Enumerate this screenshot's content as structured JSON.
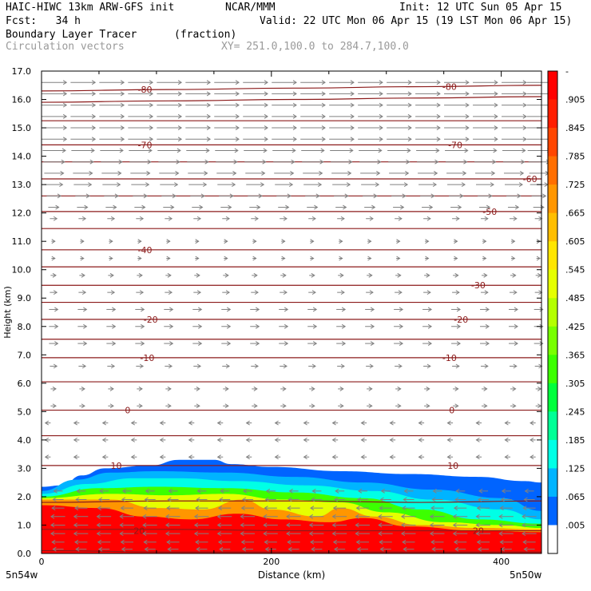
{
  "header": {
    "model": "HAIC-HIWC 13km ARW-GFS init",
    "org": "NCAR/MMM",
    "init": "Init: 12 UTC Sun 05 Apr 15",
    "fcst": "Fcst:   34 h",
    "valid": "Valid: 22 UTC Mon 06 Apr 15 (19 LST Mon 06 Apr 15)",
    "field": "Boundary Layer Tracer",
    "units": "(fraction)",
    "vectors": "Circulation vectors",
    "xy": "XY= 251.0,100.0 to 284.7,100.0"
  },
  "axis_labels": {
    "corner_left": "5n54w",
    "corner_right": "5n50w"
  },
  "colors": {
    "background": "#ffffff",
    "contour": "#8b1a1a",
    "vector": "#808080"
  },
  "chart_data": {
    "type": "heatmap",
    "xlabel": "Distance (km)",
    "ylabel": "Height (km)",
    "xlim": [
      0,
      435
    ],
    "ylim": [
      0,
      17
    ],
    "xticks": [
      0,
      200,
      400
    ],
    "yticks": [
      "0.0",
      "1.0",
      "2.0",
      "3.0",
      "4.0",
      "5.0",
      "6.0",
      "7.0",
      "8.0",
      "9.0",
      "10.0",
      "11.0",
      "12.0",
      "13.0",
      "14.0",
      "15.0",
      "16.0",
      "17.0"
    ],
    "colorbar": {
      "labels": [
        "-",
        ".905",
        ".845",
        ".785",
        ".725",
        ".665",
        ".605",
        ".545",
        ".485",
        ".425",
        ".365",
        ".305",
        ".245",
        ".185",
        ".125",
        ".065",
        ".005"
      ],
      "colors": [
        "#ff0000",
        "#ff1e00",
        "#ff4600",
        "#ff6e00",
        "#ff9600",
        "#ffbe00",
        "#ffe600",
        "#e6ff00",
        "#b4ff00",
        "#78ff00",
        "#3cff00",
        "#00ff3c",
        "#00ff96",
        "#00ffe6",
        "#00b4ff",
        "#0064ff",
        "#ffffff"
      ]
    },
    "tracer_layers": [
      {
        "fraction": 0.005,
        "color": "#0064ff",
        "top": [
          [
            0,
            2.35
          ],
          [
            18,
            2.4
          ],
          [
            35,
            2.75
          ],
          [
            55,
            3.0
          ],
          [
            95,
            3.1
          ],
          [
            120,
            3.3
          ],
          [
            150,
            3.3
          ],
          [
            165,
            3.15
          ],
          [
            200,
            3.05
          ],
          [
            260,
            2.9
          ],
          [
            320,
            2.8
          ],
          [
            380,
            2.7
          ],
          [
            420,
            2.55
          ],
          [
            435,
            2.5
          ]
        ]
      },
      {
        "fraction": 0.125,
        "color": "#00b4ff",
        "top": [
          [
            0,
            2.2
          ],
          [
            30,
            2.6
          ],
          [
            60,
            2.85
          ],
          [
            100,
            2.9
          ],
          [
            160,
            2.85
          ],
          [
            220,
            2.7
          ],
          [
            280,
            2.5
          ],
          [
            340,
            2.25
          ],
          [
            400,
            1.95
          ],
          [
            435,
            1.5
          ]
        ]
      },
      {
        "fraction": 0.245,
        "color": "#00ffe6",
        "top": [
          [
            0,
            2.1
          ],
          [
            40,
            2.45
          ],
          [
            80,
            2.65
          ],
          [
            120,
            2.65
          ],
          [
            170,
            2.55
          ],
          [
            230,
            2.4
          ],
          [
            290,
            2.2
          ],
          [
            340,
            1.9
          ],
          [
            400,
            1.55
          ],
          [
            435,
            1.2
          ]
        ]
      },
      {
        "fraction": 0.365,
        "color": "#3cff00",
        "top": [
          [
            0,
            2.0
          ],
          [
            50,
            2.3
          ],
          [
            100,
            2.35
          ],
          [
            160,
            2.3
          ],
          [
            220,
            2.15
          ],
          [
            280,
            1.95
          ],
          [
            330,
            1.55
          ],
          [
            380,
            1.2
          ],
          [
            435,
            1.05
          ]
        ]
      },
      {
        "fraction": 0.485,
        "color": "#e6ff00",
        "top": [
          [
            0,
            1.95
          ],
          [
            60,
            2.1
          ],
          [
            110,
            2.05
          ],
          [
            160,
            2.1
          ],
          [
            210,
            1.9
          ],
          [
            260,
            1.8
          ],
          [
            300,
            1.45
          ],
          [
            350,
            1.1
          ],
          [
            400,
            1.0
          ],
          [
            435,
            0.9
          ]
        ]
      },
      {
        "fraction": 0.605,
        "color": "#ff9600",
        "top": [
          [
            0,
            1.9
          ],
          [
            60,
            1.9
          ],
          [
            100,
            1.6
          ],
          [
            140,
            1.55
          ],
          [
            175,
            1.9
          ],
          [
            200,
            1.55
          ],
          [
            240,
            1.3
          ],
          [
            260,
            1.6
          ],
          [
            290,
            1.3
          ],
          [
            330,
            1.0
          ],
          [
            380,
            0.9
          ],
          [
            435,
            0.85
          ]
        ]
      },
      {
        "fraction": 0.905,
        "color": "#ff0000",
        "top": [
          [
            0,
            1.7
          ],
          [
            50,
            1.6
          ],
          [
            90,
            1.3
          ],
          [
            130,
            1.2
          ],
          [
            170,
            1.4
          ],
          [
            210,
            1.2
          ],
          [
            250,
            1.1
          ],
          [
            280,
            1.25
          ],
          [
            320,
            0.95
          ],
          [
            380,
            0.8
          ],
          [
            435,
            0.75
          ]
        ]
      }
    ],
    "contours": [
      {
        "label": "-80",
        "y": [
          16.3,
          16.35,
          16.4,
          16.45,
          16.5
        ],
        "label_at": [
          [
            90,
            16.35
          ],
          [
            355,
            16.45
          ]
        ]
      },
      {
        "label": "",
        "y": [
          15.9,
          15.95,
          16.0,
          16.05,
          16.1
        ],
        "label_at": []
      },
      {
        "label": "",
        "y": [
          15.25,
          15.25,
          15.25,
          15.25,
          15.25
        ],
        "label_at": []
      },
      {
        "label": "-70",
        "y": [
          14.4,
          14.4,
          14.4,
          14.4,
          14.4
        ],
        "label_at": [
          [
            90,
            14.4
          ],
          [
            360,
            14.4
          ]
        ]
      },
      {
        "label": "",
        "y": [
          13.8,
          13.8,
          13.8,
          13.8,
          13.8
        ],
        "label_at": []
      },
      {
        "label": "-60",
        "y": [
          13.2,
          13.2,
          13.2,
          13.2,
          13.2
        ],
        "label_at": [
          [
            425,
            13.2
          ]
        ]
      },
      {
        "label": "",
        "y": [
          12.6,
          12.6,
          12.6,
          12.6,
          12.6
        ],
        "label_at": []
      },
      {
        "label": "-50",
        "y": [
          12.05,
          12.05,
          12.05,
          12.05,
          12.05
        ],
        "label_at": [
          [
            390,
            12.05
          ]
        ]
      },
      {
        "label": "",
        "y": [
          11.45,
          11.45,
          11.45,
          11.45,
          11.45
        ],
        "label_at": []
      },
      {
        "label": "-40",
        "y": [
          10.7,
          10.7,
          10.7,
          10.7,
          10.7
        ],
        "label_at": [
          [
            90,
            10.7
          ]
        ]
      },
      {
        "label": "",
        "y": [
          10.1,
          10.1,
          10.1,
          10.1,
          10.1
        ],
        "label_at": []
      },
      {
        "label": "-30",
        "y": [
          9.45,
          9.45,
          9.45,
          9.45,
          9.45
        ],
        "label_at": [
          [
            380,
            9.45
          ]
        ]
      },
      {
        "label": "",
        "y": [
          8.85,
          8.85,
          8.85,
          8.85,
          8.85
        ],
        "label_at": []
      },
      {
        "label": "-20",
        "y": [
          8.25,
          8.25,
          8.25,
          8.25,
          8.25
        ],
        "label_at": [
          [
            95,
            8.25
          ],
          [
            365,
            8.25
          ]
        ]
      },
      {
        "label": "",
        "y": [
          7.55,
          7.55,
          7.55,
          7.55,
          7.55
        ],
        "label_at": []
      },
      {
        "label": "-10",
        "y": [
          6.9,
          6.9,
          6.9,
          6.9,
          6.9
        ],
        "label_at": [
          [
            92,
            6.9
          ],
          [
            355,
            6.9
          ]
        ]
      },
      {
        "label": "",
        "y": [
          6.05,
          6.05,
          6.05,
          6.05,
          6.05
        ],
        "label_at": []
      },
      {
        "label": "0",
        "y": [
          5.05,
          5.05,
          5.05,
          5.05,
          5.05
        ],
        "label_at": [
          [
            75,
            5.05
          ],
          [
            357,
            5.05
          ]
        ]
      },
      {
        "label": "",
        "y": [
          4.15,
          4.15,
          4.15,
          4.15,
          4.15
        ],
        "label_at": []
      },
      {
        "label": "10",
        "y": [
          3.1,
          3.1,
          3.1,
          3.1,
          3.1
        ],
        "label_at": [
          [
            65,
            3.1
          ],
          [
            358,
            3.1
          ]
        ]
      },
      {
        "label": "",
        "y": [
          1.8,
          1.85,
          1.85,
          1.8,
          1.85
        ],
        "label_at": []
      },
      {
        "label": "20",
        "y": [
          0.85,
          0.85,
          0.8,
          0.8,
          0.8
        ],
        "label_at": [
          [
            85,
            0.8
          ],
          [
            380,
            0.8
          ]
        ]
      },
      {
        "label": "",
        "y": [
          0.1,
          0.05,
          0.05,
          0.05,
          0.05
        ],
        "label_at": []
      }
    ],
    "contour_x": [
      0,
      110,
      220,
      330,
      435
    ],
    "vectors": {
      "x": [
        10,
        35,
        60,
        85,
        110,
        135,
        160,
        185,
        210,
        235,
        260,
        285,
        310,
        335,
        360,
        385,
        410,
        432
      ],
      "levels": [
        {
          "z": 16.6,
          "u": 14,
          "w": 0
        },
        {
          "z": 16.2,
          "u": 14,
          "w": 0
        },
        {
          "z": 15.8,
          "u": 14,
          "w": 0
        },
        {
          "z": 15.4,
          "u": 14,
          "w": 0
        },
        {
          "z": 15.0,
          "u": 14,
          "w": 0
        },
        {
          "z": 14.6,
          "u": 14,
          "w": 0
        },
        {
          "z": 14.2,
          "u": 13,
          "w": 0
        },
        {
          "z": 13.8,
          "u": 12,
          "w": 0
        },
        {
          "z": 13.4,
          "u": 11,
          "w": 0
        },
        {
          "z": 13.0,
          "u": 10,
          "w": 0
        },
        {
          "z": 12.6,
          "u": 8,
          "w": 0
        },
        {
          "z": 12.2,
          "u": 6,
          "w": 0
        },
        {
          "z": 11.8,
          "u": 4,
          "w": 0
        },
        {
          "z": 11.0,
          "u": 2,
          "w": 0
        },
        {
          "z": 10.4,
          "u": 2,
          "w": 0
        },
        {
          "z": 9.8,
          "u": 3,
          "w": 0
        },
        {
          "z": 9.2,
          "u": 4,
          "w": 0
        },
        {
          "z": 8.6,
          "u": 5,
          "w": 0
        },
        {
          "z": 8.0,
          "u": 5,
          "w": 0
        },
        {
          "z": 7.4,
          "u": 5,
          "w": 0
        },
        {
          "z": 6.6,
          "u": 4,
          "w": 0
        },
        {
          "z": 5.8,
          "u": 3,
          "w": 0
        },
        {
          "z": 5.2,
          "u": 3,
          "w": 0
        },
        {
          "z": 4.6,
          "u": -3,
          "w": 0
        },
        {
          "z": 4.0,
          "u": -3,
          "w": 0
        },
        {
          "z": 3.4,
          "u": -3,
          "w": 0
        }
      ],
      "low_levels": [
        {
          "z": 2.2,
          "u": -5,
          "w": 0
        },
        {
          "z": 1.9,
          "u": -6,
          "w": 0
        },
        {
          "z": 1.6,
          "u": -7,
          "w": 0
        },
        {
          "z": 1.3,
          "u": -8,
          "w": 0
        },
        {
          "z": 1.0,
          "u": -8,
          "w": 0
        },
        {
          "z": 0.7,
          "u": -8,
          "w": 0
        },
        {
          "z": 0.4,
          "u": -7,
          "w": 0
        },
        {
          "z": 0.15,
          "u": -6,
          "w": 0
        }
      ],
      "low_x": [
        15,
        35,
        55,
        75,
        95,
        115,
        140,
        160,
        180,
        200,
        220,
        240,
        260,
        280,
        300,
        320,
        345,
        365,
        385,
        405,
        425
      ]
    }
  }
}
